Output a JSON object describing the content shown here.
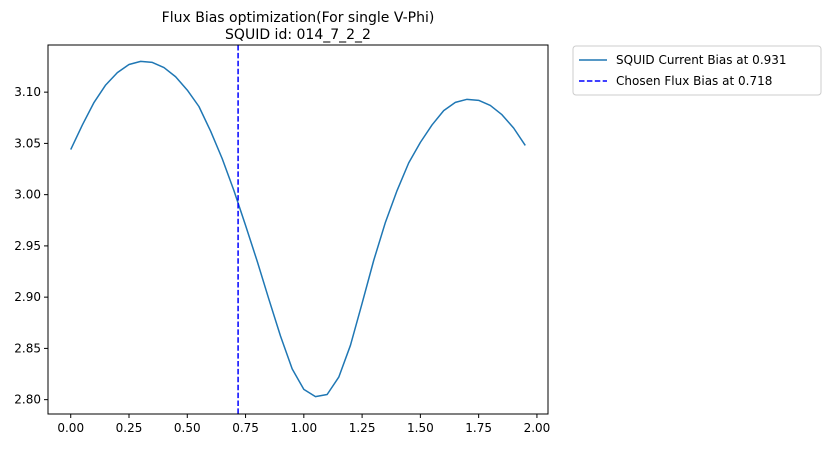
{
  "chart_data": {
    "type": "line",
    "title_line1": "Flux Bias optimization(For single V-Phi)",
    "title_line2": "SQUID id: 014_7_2_2",
    "xlabel": "",
    "ylabel": "",
    "xlim": [
      -0.0975,
      2.0475
    ],
    "ylim": [
      2.786,
      3.146
    ],
    "x_ticks": [
      0.0,
      0.25,
      0.5,
      0.75,
      1.0,
      1.25,
      1.5,
      1.75,
      2.0
    ],
    "x_tick_labels": [
      "0.00",
      "0.25",
      "0.50",
      "0.75",
      "1.00",
      "1.25",
      "1.50",
      "1.75",
      "2.00"
    ],
    "y_ticks": [
      2.8,
      2.85,
      2.9,
      2.95,
      3.0,
      3.05,
      3.1
    ],
    "y_tick_labels": [
      "2.80",
      "2.85",
      "2.90",
      "2.95",
      "3.00",
      "3.05",
      "3.10"
    ],
    "grid": false,
    "legend_position": "outside-upper-right",
    "series": [
      {
        "name": "SQUID Current Bias at 0.931",
        "color": "#1f77b4",
        "style": "solid",
        "x": [
          0.0,
          0.05,
          0.1,
          0.15,
          0.2,
          0.25,
          0.3,
          0.35,
          0.4,
          0.45,
          0.5,
          0.55,
          0.6,
          0.65,
          0.7,
          0.75,
          0.8,
          0.85,
          0.9,
          0.95,
          1.0,
          1.05,
          1.1,
          1.15,
          1.2,
          1.25,
          1.3,
          1.35,
          1.4,
          1.45,
          1.5,
          1.55,
          1.6,
          1.65,
          1.7,
          1.75,
          1.8,
          1.85,
          1.9,
          1.95
        ],
        "y": [
          3.044,
          3.068,
          3.09,
          3.107,
          3.119,
          3.127,
          3.13,
          3.129,
          3.124,
          3.115,
          3.102,
          3.086,
          3.062,
          3.035,
          3.004,
          2.97,
          2.935,
          2.898,
          2.862,
          2.83,
          2.81,
          2.803,
          2.805,
          2.822,
          2.853,
          2.894,
          2.936,
          2.973,
          3.004,
          3.031,
          3.051,
          3.068,
          3.082,
          3.09,
          3.093,
          3.092,
          3.087,
          3.078,
          3.065,
          3.048
        ]
      }
    ],
    "vline": {
      "name": "Chosen Flux Bias at 0.718",
      "x": 0.718,
      "color": "#0000ff",
      "style": "dashed"
    }
  }
}
